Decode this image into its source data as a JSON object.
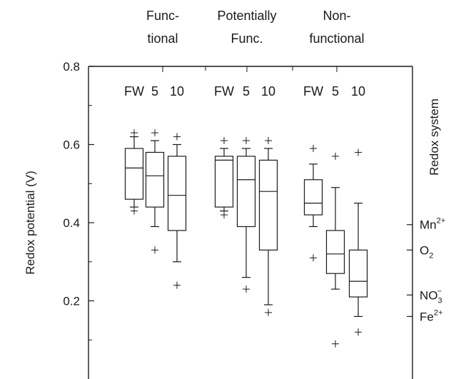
{
  "chart_data": {
    "type": "box",
    "ylabel": "Redox potential (V)",
    "right_axis_title": "Redox system",
    "ylim": [
      0.0,
      0.8
    ],
    "yticks": [
      {
        "value": 0.8,
        "label": "0.8"
      },
      {
        "value": 0.6,
        "label": "0.6"
      },
      {
        "value": 0.4,
        "label": "0.4"
      },
      {
        "value": 0.2,
        "label": "0.2"
      }
    ],
    "groups": [
      {
        "label_lines": [
          "Func-",
          "tional"
        ],
        "boxes": [
          {
            "name": "FW",
            "whisker_low": 0.44,
            "q1": 0.46,
            "median": 0.54,
            "q3": 0.59,
            "whisker_high": 0.62,
            "outliers": [
              0.63,
              0.43
            ]
          },
          {
            "name": "5",
            "whisker_low": 0.39,
            "q1": 0.44,
            "median": 0.52,
            "q3": 0.58,
            "whisker_high": 0.61,
            "outliers": [
              0.63,
              0.33
            ]
          },
          {
            "name": "10",
            "whisker_low": 0.3,
            "q1": 0.38,
            "median": 0.47,
            "q3": 0.57,
            "whisker_high": 0.6,
            "outliers": [
              0.62,
              0.24
            ]
          }
        ]
      },
      {
        "label_lines": [
          "Potentially",
          "Func."
        ],
        "boxes": [
          {
            "name": "FW",
            "whisker_low": 0.43,
            "q1": 0.44,
            "median": 0.56,
            "q3": 0.57,
            "whisker_high": 0.59,
            "outliers": [
              0.61,
              0.42
            ]
          },
          {
            "name": "5",
            "whisker_low": 0.26,
            "q1": 0.39,
            "median": 0.51,
            "q3": 0.57,
            "whisker_high": 0.59,
            "outliers": [
              0.61,
              0.23
            ]
          },
          {
            "name": "10",
            "whisker_low": 0.19,
            "q1": 0.33,
            "median": 0.48,
            "q3": 0.56,
            "whisker_high": 0.59,
            "outliers": [
              0.61,
              0.17
            ]
          }
        ]
      },
      {
        "label_lines": [
          "Non-",
          "functional"
        ],
        "boxes": [
          {
            "name": "FW",
            "whisker_low": 0.39,
            "q1": 0.42,
            "median": 0.45,
            "q3": 0.51,
            "whisker_high": 0.55,
            "outliers": [
              0.59,
              0.31
            ]
          },
          {
            "name": "5",
            "whisker_low": 0.23,
            "q1": 0.27,
            "median": 0.32,
            "q3": 0.38,
            "whisker_high": 0.49,
            "outliers": [
              0.57,
              0.09
            ]
          },
          {
            "name": "10",
            "whisker_low": 0.16,
            "q1": 0.21,
            "median": 0.25,
            "q3": 0.33,
            "whisker_high": 0.45,
            "outliers": [
              0.58,
              0.12
            ]
          }
        ]
      }
    ],
    "redox_systems": [
      {
        "base": "Mn",
        "sub": "",
        "sup": "2+",
        "value": 0.395
      },
      {
        "base": "O",
        "sub": "2",
        "sup": "",
        "value": 0.33
      },
      {
        "base": "NO",
        "sub": "3",
        "sup": "−",
        "value": 0.215
      },
      {
        "base": "Fe",
        "sub": "",
        "sup": "2+",
        "value": 0.16
      }
    ]
  }
}
